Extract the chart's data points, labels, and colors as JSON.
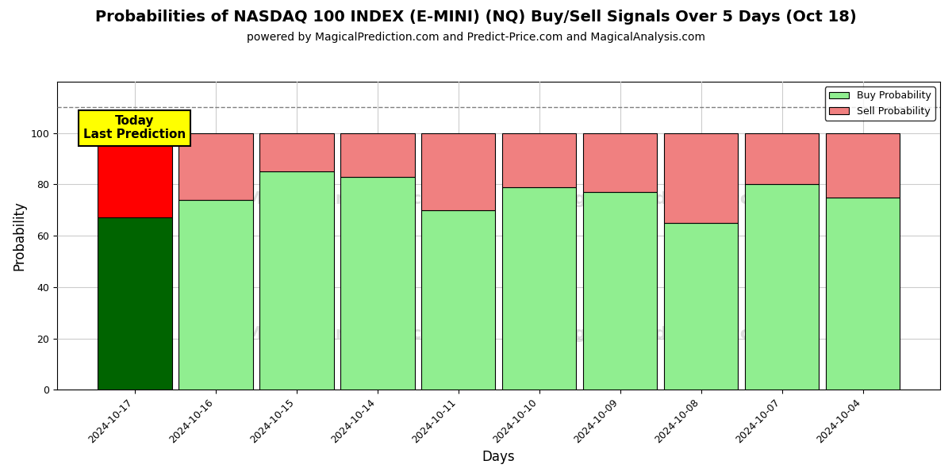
{
  "title": "Probabilities of NASDAQ 100 INDEX (E-MINI) (NQ) Buy/Sell Signals Over 5 Days (Oct 18)",
  "subtitle": "powered by MagicalPrediction.com and Predict-Price.com and MagicalAnalysis.com",
  "xlabel": "Days",
  "ylabel": "Probability",
  "dates": [
    "2024-10-17",
    "2024-10-16",
    "2024-10-15",
    "2024-10-14",
    "2024-10-11",
    "2024-10-10",
    "2024-10-09",
    "2024-10-08",
    "2024-10-07",
    "2024-10-04"
  ],
  "buy_values": [
    67,
    74,
    85,
    83,
    70,
    79,
    77,
    65,
    80,
    75
  ],
  "sell_values": [
    33,
    26,
    15,
    17,
    30,
    21,
    23,
    35,
    20,
    25
  ],
  "buy_color_today": "#006400",
  "sell_color_today": "#FF0000",
  "buy_color_rest": "#90EE90",
  "sell_color_rest": "#F08080",
  "bar_edgecolor": "black",
  "bar_linewidth": 0.8,
  "ylim": [
    0,
    120
  ],
  "yticks": [
    0,
    20,
    40,
    60,
    80,
    100
  ],
  "dashed_line_y": 110,
  "annotation_box_text": "Today\nLast Prediction",
  "annotation_box_color": "#FFFF00",
  "legend_buy_label": "Buy Probability",
  "legend_sell_label": "Sell Probability",
  "background_color": "#ffffff",
  "grid_color": "#cccccc",
  "title_fontsize": 14,
  "subtitle_fontsize": 10,
  "axis_label_fontsize": 12,
  "tick_fontsize": 9,
  "bar_width": 0.92,
  "figsize": [
    12,
    6
  ],
  "dpi": 100
}
